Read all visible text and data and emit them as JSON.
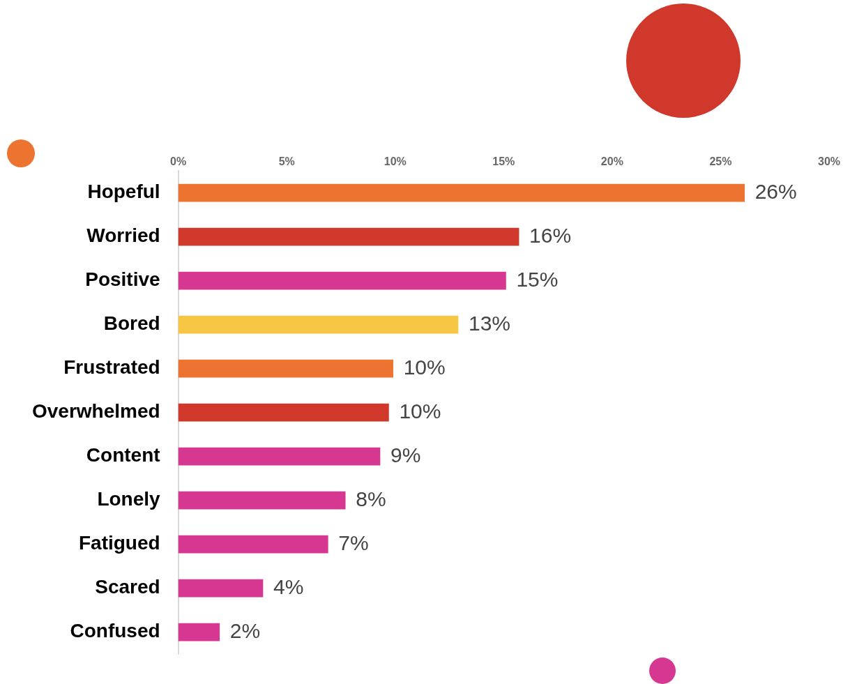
{
  "chart_data": {
    "type": "bar",
    "orientation": "horizontal",
    "categories": [
      "Hopeful",
      "Worried",
      "Positive",
      "Bored",
      "Frustrated",
      "Overwhelmed",
      "Content",
      "Lonely",
      "Fatigued",
      "Scared",
      "Confused"
    ],
    "values": [
      26.1,
      15.7,
      15.1,
      12.9,
      9.9,
      9.7,
      9.3,
      7.7,
      6.9,
      3.9,
      1.9
    ],
    "colors": [
      "#ed7331",
      "#d0382b",
      "#d63891",
      "#f6c644",
      "#ed7331",
      "#d0382b",
      "#d63891",
      "#d63891",
      "#d63891",
      "#d63891",
      "#d63891"
    ],
    "value_labels": [
      "26%",
      "16%",
      "15%",
      "13%",
      "10%",
      "10%",
      "9%",
      "8%",
      "7%",
      "4%",
      "2%"
    ],
    "xlim": [
      0,
      30
    ],
    "xticks": [
      {
        "value": 0,
        "label": "0%"
      },
      {
        "value": 5,
        "label": "5%"
      },
      {
        "value": 10,
        "label": "10%"
      },
      {
        "value": 15,
        "label": "15%"
      },
      {
        "value": 20,
        "label": "20%"
      },
      {
        "value": 25,
        "label": "25%"
      },
      {
        "value": 30,
        "label": "30%"
      }
    ],
    "grid": false,
    "legend": false
  }
}
